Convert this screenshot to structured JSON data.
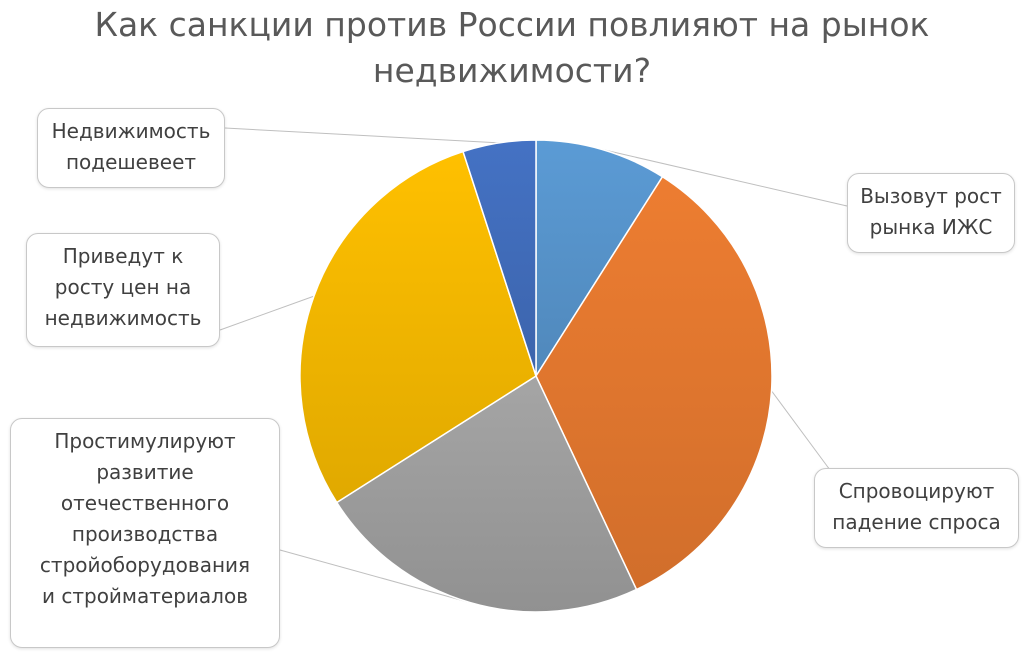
{
  "chart_data": {
    "type": "pie",
    "title": "Как санкции против России повлияют на рынок недвижимости?",
    "title_lines": [
      "Как санкции против России повлияют на рынок",
      "недвижимости?"
    ],
    "slices": [
      {
        "label": "Вызовут рост рынка ИЖС",
        "value": 9,
        "color": "#5b9bd5"
      },
      {
        "label": "Спровоцируют падение спроса",
        "value": 34,
        "color": "#ed7d31"
      },
      {
        "label": "Простимулируют развитие отечественного производства стройоборудования и стройматериалов",
        "value": 23,
        "color": "#a5a5a5"
      },
      {
        "label": "Приведут к росту цен на недвижимость",
        "value": 29,
        "color": "#ffc000"
      },
      {
        "label": "Недвижимость подешевеет",
        "value": 5,
        "color": "#4472c4"
      }
    ],
    "legend": "none",
    "data_labels": "callouts"
  }
}
